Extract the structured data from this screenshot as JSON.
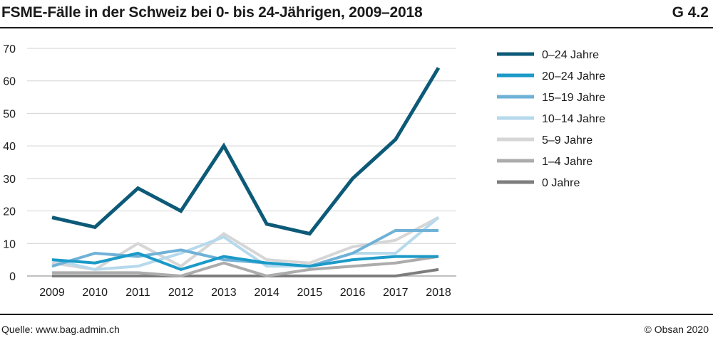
{
  "header": {
    "title": "FSME-Fälle in der Schweiz bei 0- bis 24-Jährigen, 2009–2018",
    "code": "G 4.2"
  },
  "footer": {
    "source": "Quelle: www.bag.admin.ch",
    "copyright": "© Obsan 2020"
  },
  "chart_data": {
    "type": "line",
    "title": "FSME-Fälle in der Schweiz bei 0- bis 24-Jährigen, 2009–2018",
    "xlabel": "",
    "ylabel": "",
    "ylim": [
      0,
      70
    ],
    "yticks": [
      "0",
      "10",
      "20",
      "30",
      "40",
      "50",
      "60",
      "70"
    ],
    "categories": [
      "2009",
      "2010",
      "2011",
      "2012",
      "2013",
      "2014",
      "2015",
      "2016",
      "2017",
      "2018"
    ],
    "legend_position": "right",
    "series": [
      {
        "name": "0–24 Jahre",
        "color": "#0d5a78",
        "values": [
          18,
          15,
          27,
          20,
          40,
          16,
          13,
          30,
          42,
          64
        ]
      },
      {
        "name": "20–24 Jahre",
        "color": "#1b9ac8",
        "values": [
          5,
          4,
          7,
          2,
          6,
          4,
          3,
          5,
          6,
          6
        ]
      },
      {
        "name": "15–19 Jahre",
        "color": "#6fb1d7",
        "values": [
          3,
          7,
          6,
          8,
          5,
          4,
          3,
          7,
          14,
          14
        ]
      },
      {
        "name": "10–14 Jahre",
        "color": "#b6d9ec",
        "values": [
          5,
          2,
          3,
          7,
          12,
          3,
          3,
          7,
          7,
          18
        ]
      },
      {
        "name": "5–9 Jahre",
        "color": "#d6d6d6",
        "values": [
          4,
          2,
          10,
          3,
          13,
          5,
          4,
          9,
          11,
          18
        ]
      },
      {
        "name": "1–4 Jahre",
        "color": "#acacac",
        "values": [
          1,
          1,
          1,
          0,
          4,
          0,
          2,
          3,
          4,
          6
        ]
      },
      {
        "name": "0 Jahre",
        "color": "#7d7d7d",
        "values": [
          0,
          0,
          0,
          0,
          0,
          0,
          0,
          0,
          0,
          2
        ]
      }
    ]
  }
}
